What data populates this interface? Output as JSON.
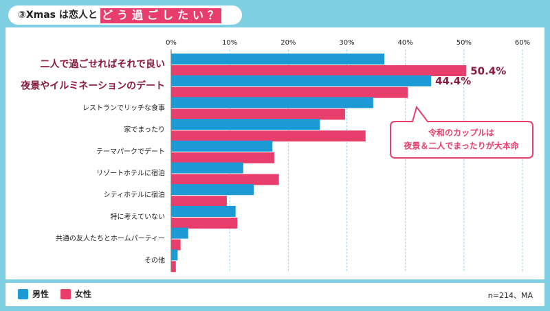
{
  "chart_data": {
    "type": "bar",
    "orientation": "horizontal",
    "title": "③Xmas は恋人と",
    "title_highlight": "どう過ごしたい？",
    "categories": [
      "二人で過ごせればそれで良い",
      "夜景やイルミネーションのデート",
      "レストランでリッチな食事",
      "家でまったり",
      "テーマパークでデート",
      "リゾートホテルに宿泊",
      "シティホテルに宿泊",
      "特に考えていない",
      "共通の友人たちとホームパーティー",
      "その他"
    ],
    "series": [
      {
        "name": "男性",
        "color": "#1c9ad6",
        "values": [
          36.4,
          44.4,
          34.5,
          25.4,
          17.3,
          12.3,
          14.1,
          11.0,
          2.9,
          1.1
        ],
        "value_labels": [
          null,
          "44.4%",
          null,
          null,
          null,
          null,
          null,
          null,
          null,
          null
        ]
      },
      {
        "name": "女性",
        "color": "#e83e6c",
        "values": [
          50.4,
          40.4,
          29.7,
          33.2,
          17.6,
          18.4,
          9.5,
          11.3,
          1.6,
          0.8
        ],
        "value_labels": [
          "50.4%",
          null,
          null,
          null,
          null,
          null,
          null,
          null,
          null,
          null
        ]
      }
    ],
    "xlim": [
      0,
      60
    ],
    "xticks": [
      {
        "value": 0,
        "label": "0%"
      },
      {
        "value": 10,
        "label": "10%"
      },
      {
        "value": 20,
        "label": "20%"
      },
      {
        "value": 30,
        "label": "30%"
      },
      {
        "value": 40,
        "label": "40%"
      },
      {
        "value": 50,
        "label": "50%"
      },
      {
        "value": 60,
        "label": "60%"
      }
    ],
    "grid": true,
    "annotation": [
      "令和のカップルは",
      "夜景＆二人でまったりが大本命"
    ],
    "note": "n=214、MA"
  }
}
